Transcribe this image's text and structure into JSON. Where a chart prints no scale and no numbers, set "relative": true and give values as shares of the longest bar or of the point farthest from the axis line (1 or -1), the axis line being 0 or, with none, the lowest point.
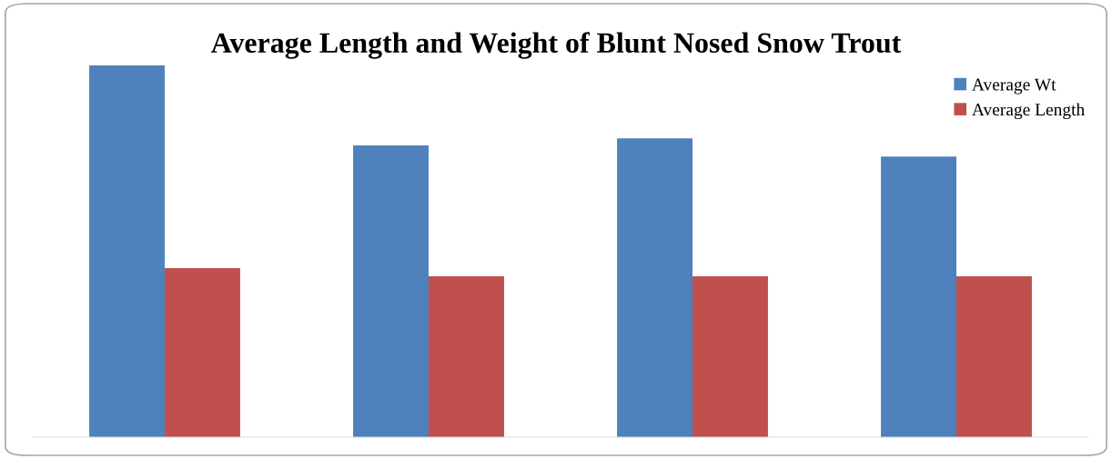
{
  "chart_data": {
    "type": "bar",
    "title": "Average Length and Weight of Blunt Nosed Snow Trout",
    "relative": true,
    "categories": [
      null,
      null,
      null,
      null
    ],
    "series": [
      {
        "name": "Average Wt",
        "color": "#4f81bd",
        "values": [
          1,
          0.785,
          0.804,
          0.755
        ]
      },
      {
        "name": "Average Length",
        "color": "#c0504d",
        "values": [
          0.455,
          0.433,
          0.433,
          0.433
        ]
      }
    ],
    "legend": "top right",
    "grid": false
  }
}
